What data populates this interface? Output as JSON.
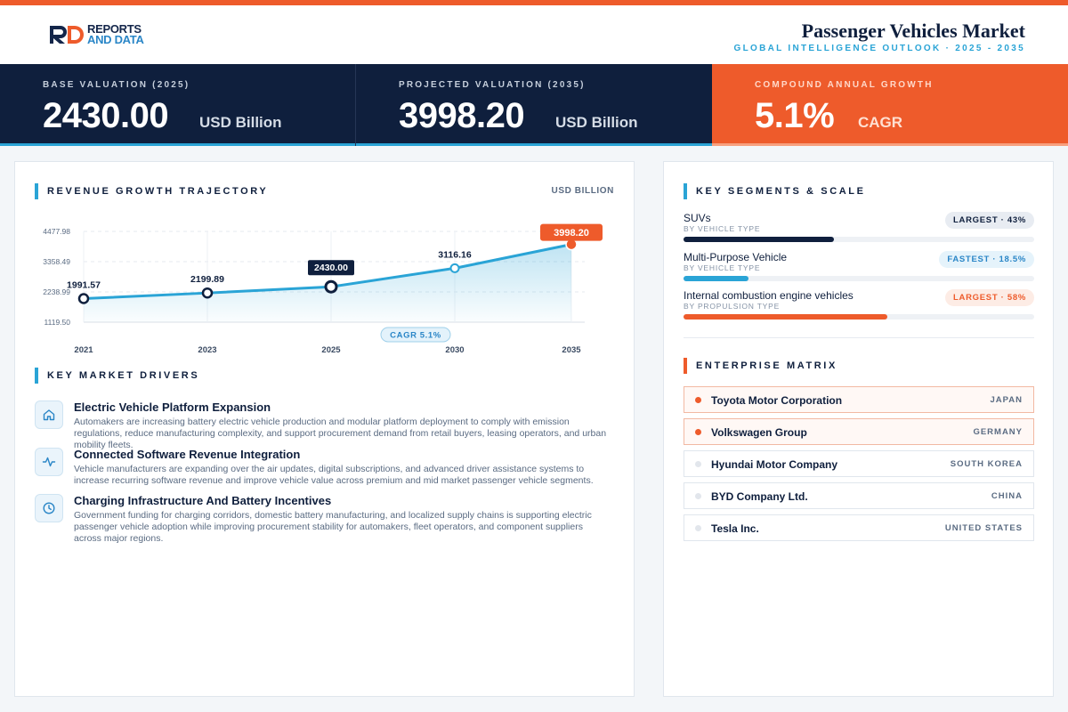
{
  "brand": {
    "line1": "REPORTS",
    "line2": "AND DATA",
    "mark_icon": "rd-logo-icon"
  },
  "header": {
    "title": "Passenger Vehicles Market",
    "subtitle": "GLOBAL INTELLIGENCE OUTLOOK  ·  2025 - 2035"
  },
  "colors": {
    "navy": "#0f1f3d",
    "accent_blue": "#2aa4d6",
    "accent_orange": "#ee5b2b"
  },
  "kpis": [
    {
      "label": "BASE VALUATION (2025)",
      "value": "2430.00",
      "unit": "USD Billion"
    },
    {
      "label": "PROJECTED VALUATION (2035)",
      "value": "3998.20",
      "unit": "USD Billion"
    },
    {
      "label": "COMPOUND ANNUAL GROWTH",
      "value": "5.1%",
      "unit": "CAGR"
    }
  ],
  "chart_section": {
    "title": "REVENUE GROWTH TRAJECTORY",
    "unit": "USD BILLION",
    "cagr_badge": "CAGR 5.1%"
  },
  "chart_data": {
    "type": "line",
    "categories": [
      "2021",
      "2023",
      "2025",
      "2030",
      "2035"
    ],
    "values": [
      1991.57,
      2199.89,
      2430.0,
      3116.16,
      3998.2
    ],
    "data_labels": [
      "1991.57",
      "2199.89",
      "2430.00",
      "3116.16",
      "3998.20"
    ],
    "y_ticks": [
      1119.5,
      2238.99,
      3358.49,
      4477.98
    ],
    "y_tick_labels": [
      "1119.50",
      "2238.99",
      "3358.49",
      "4477.98"
    ],
    "ylim": [
      1119.5,
      4477.98
    ],
    "grid": true,
    "area_fill": true,
    "annotation": "CAGR 5.1%"
  },
  "drivers_section": {
    "title": "KEY MARKET DRIVERS"
  },
  "drivers": [
    {
      "icon": "home-icon",
      "title": "Electric Vehicle Platform Expansion",
      "desc": "Automakers are increasing battery electric vehicle production and modular platform deployment to comply with emission regulations, reduce manufacturing complexity, and support procurement demand from retail buyers, leasing operators, and urban mobility fleets."
    },
    {
      "icon": "activity-icon",
      "title": "Connected Software Revenue Integration",
      "desc": "Vehicle manufacturers are expanding over the air updates, digital subscriptions, and advanced driver assistance systems to increase recurring software revenue and improve vehicle value across premium and mid market passenger vehicle segments."
    },
    {
      "icon": "clock-icon",
      "title": "Charging Infrastructure And Battery Incentives",
      "desc": "Government funding for charging corridors, domestic battery manufacturing, and localized supply chains is supporting electric passenger vehicle adoption while improving procurement stability for automakers, fleet operators, and component suppliers across major regions."
    }
  ],
  "segments_section": {
    "title": "KEY SEGMENTS & SCALE"
  },
  "segments": [
    {
      "name": "SUVs",
      "sub": "BY VEHICLE TYPE",
      "badge": "LARGEST · 43%",
      "share": 0.43,
      "color": "#0f1f3d"
    },
    {
      "name": "Multi-Purpose Vehicle",
      "sub": "BY VEHICLE TYPE",
      "badge": "FASTEST · 18.5%",
      "share": 0.185,
      "color": "#2aa4d6"
    },
    {
      "name": "Internal combustion engine vehicles",
      "sub": "BY PROPULSION TYPE",
      "badge": "LARGEST · 58%",
      "share": 0.58,
      "color": "#ee5b2b"
    }
  ],
  "enterprise_section": {
    "title": "ENTERPRISE MATRIX"
  },
  "enterprises": [
    {
      "name": "Toyota Motor Corporation",
      "country": "JAPAN",
      "highlight": true
    },
    {
      "name": "Volkswagen Group",
      "country": "GERMANY",
      "highlight": true
    },
    {
      "name": "Hyundai Motor Company",
      "country": "SOUTH KOREA",
      "highlight": false
    },
    {
      "name": "BYD Company Ltd.",
      "country": "CHINA",
      "highlight": false
    },
    {
      "name": "Tesla Inc.",
      "country": "UNITED STATES",
      "highlight": false
    }
  ]
}
